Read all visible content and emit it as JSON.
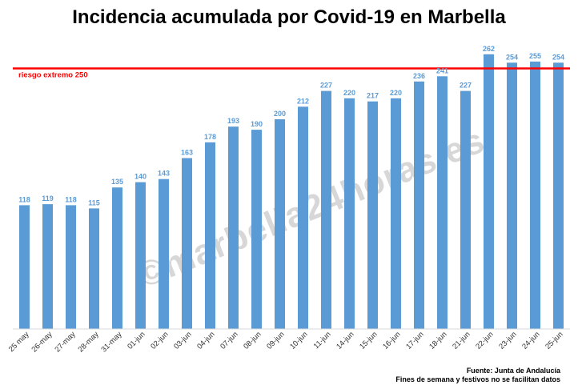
{
  "title": "Incidencia acumulada por Covid-19 en Marbella",
  "watermark": "©marbella24horas.es",
  "footer": {
    "source": "Fuente: Junta de Andalucía",
    "note": "Fines de semana y festivos no se facilitan datos"
  },
  "colors": {
    "bar": "#5b9bd5",
    "threshold": "#ff0000"
  },
  "chart_data": {
    "type": "bar",
    "title": "Incidencia acumulada por Covid-19 en Marbella",
    "xlabel": "",
    "ylabel": "",
    "categories": [
      "25 may",
      "26-may",
      "27-may",
      "28-may",
      "31-may",
      "01-jun",
      "02-jun",
      "03-jun",
      "04-jun",
      "07-jun",
      "08-jun",
      "09-jun",
      "10-jun",
      "11-jun",
      "14-jun",
      "15-jun",
      "16-jun",
      "17-jun",
      "18-jun",
      "21-jun",
      "22-jun",
      "23-jun",
      "24-jun",
      "25-jun"
    ],
    "values": [
      118,
      119,
      118,
      115,
      135,
      140,
      143,
      163,
      178,
      193,
      190,
      200,
      212,
      227,
      220,
      217,
      220,
      236,
      241,
      227,
      262,
      254,
      255,
      254
    ],
    "data_labels": true,
    "ylim": [
      0,
      270
    ],
    "grid": false,
    "reference_line": {
      "value": 250,
      "label": "riesgo extremo 250",
      "color": "#ff0000"
    }
  }
}
